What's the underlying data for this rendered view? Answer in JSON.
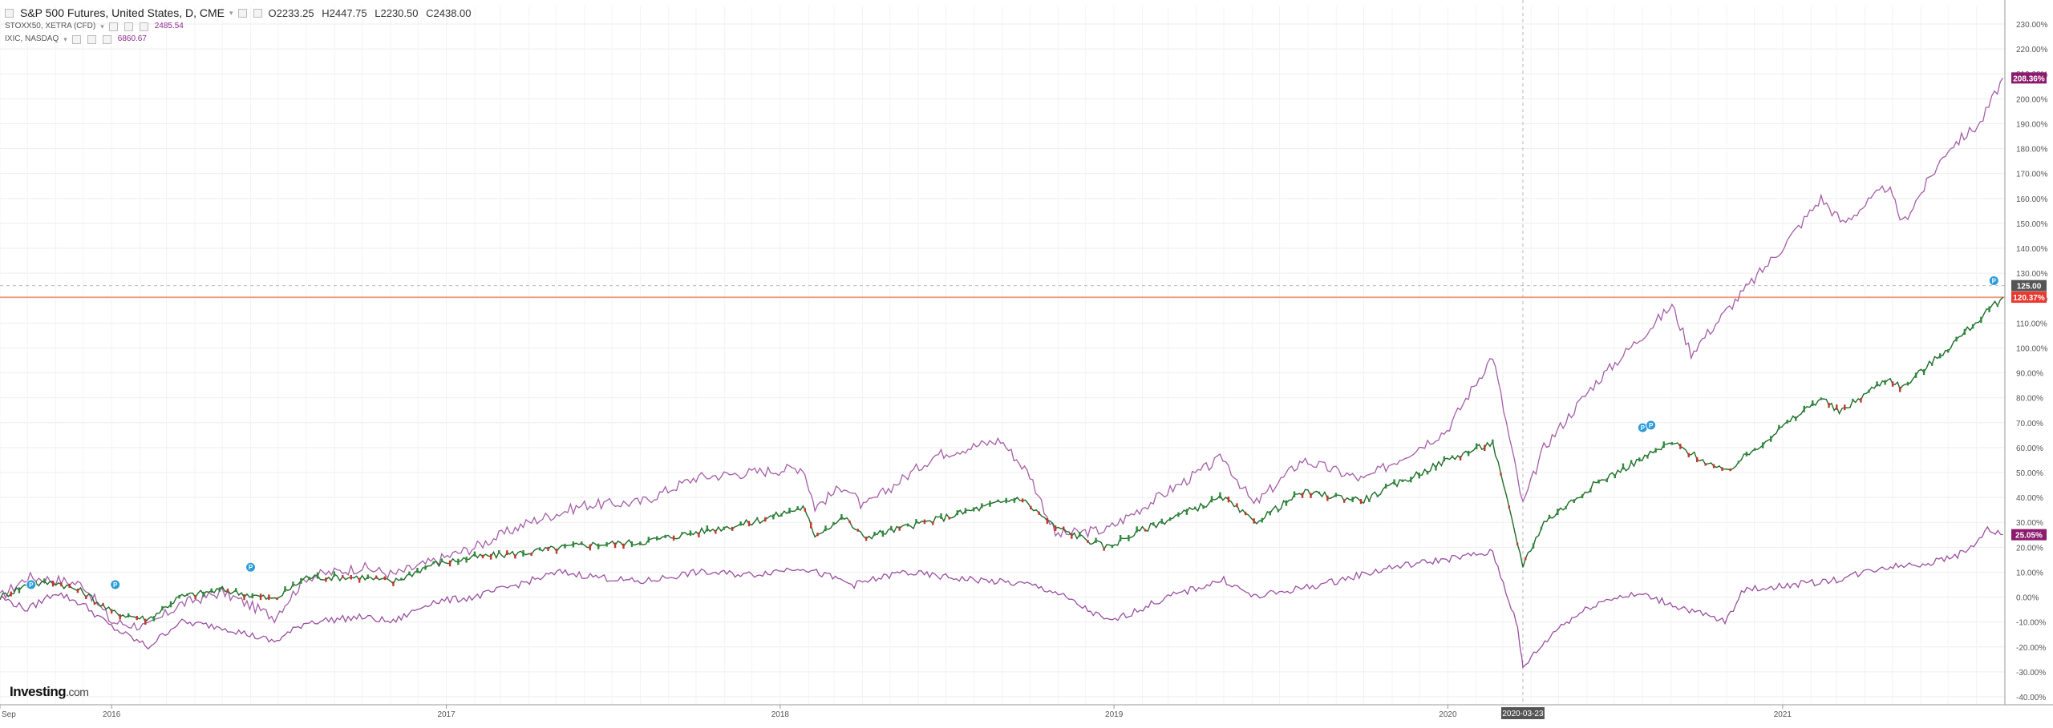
{
  "legend": {
    "main": {
      "title": "S&P 500 Futures, United States, D, CME",
      "open": "O2233.25",
      "high": "H2447.75",
      "low": "L2230.50",
      "close": "C2438.00"
    },
    "series": [
      {
        "name": "STOXX50, XETRA (CFD)",
        "value": "2485.54"
      },
      {
        "name": "IXIC, NASDAQ",
        "value": "6860.67"
      }
    ]
  },
  "logo": {
    "text": "Investing",
    "suffix": ".com"
  },
  "axis": {
    "y_ticks": [
      "230.00%",
      "220.00%",
      "210.00%",
      "200.00%",
      "190.00%",
      "180.00%",
      "170.00%",
      "160.00%",
      "150.00%",
      "140.00%",
      "130.00%",
      "120.00%",
      "110.00%",
      "100.00%",
      "90.00%",
      "80.00%",
      "70.00%",
      "60.00%",
      "50.00%",
      "40.00%",
      "30.00%",
      "20.00%",
      "10.00%",
      "0.00%",
      "-10.00%",
      "-20.00%",
      "-30.00%",
      "-40.00%"
    ],
    "x_labels": [
      "Sep",
      "2016",
      "2017",
      "2018",
      "2019",
      "2020",
      "2021"
    ],
    "crosshair_date": "2020-03-23",
    "badges": [
      {
        "label": "208.36%",
        "value": 208.36,
        "color": "#8e1a6e"
      },
      {
        "label": "125.00",
        "value": 125.0,
        "color": "#555555"
      },
      {
        "label": "120.37%",
        "value": 120.37,
        "color": "#e8382f"
      },
      {
        "label": "25.05%",
        "value": 25.05,
        "color": "#8e1a6e"
      }
    ]
  },
  "colors": {
    "ixic": "#a55ea8",
    "stoxx": "#9b4fa0",
    "up": "#2e8b3a",
    "down": "#c0392b",
    "hline": "#f28b6d",
    "grid": "#eeeeee"
  },
  "chart_data": {
    "type": "line",
    "ylim": [
      -40,
      230
    ],
    "y_unit": "%",
    "xlim": [
      "2015-09-01",
      "2021-09-01"
    ],
    "hline": 120.37,
    "crosshair_y": 125.0,
    "series": [
      {
        "name": "IXIC, NASDAQ",
        "color": "#a55ea8",
        "x": [
          "2015-09-01",
          "2015-10-01",
          "2015-11-01",
          "2015-12-01",
          "2016-01-01",
          "2016-02-10",
          "2016-03-15",
          "2016-05-01",
          "2016-06-27",
          "2016-08-01",
          "2016-10-01",
          "2016-11-04",
          "2016-12-15",
          "2017-02-01",
          "2017-04-01",
          "2017-06-01",
          "2017-08-01",
          "2017-10-01",
          "2017-12-01",
          "2018-01-26",
          "2018-02-08",
          "2018-03-12",
          "2018-04-02",
          "2018-06-20",
          "2018-08-30",
          "2018-10-01",
          "2018-10-29",
          "2018-12-24",
          "2019-02-01",
          "2019-04-30",
          "2019-06-03",
          "2019-07-26",
          "2019-10-01",
          "2019-12-31",
          "2020-02-19",
          "2020-03-23",
          "2020-04-15",
          "2020-06-08",
          "2020-09-02",
          "2020-09-23",
          "2020-11-01",
          "2020-12-31",
          "2021-02-12",
          "2021-03-08",
          "2021-04-26",
          "2021-05-12",
          "2021-07-01",
          "2021-08-05",
          "2021-08-30"
        ],
        "y": [
          0,
          8,
          7,
          5,
          -10,
          -12,
          -3,
          2,
          -8,
          8,
          12,
          9,
          14,
          20,
          30,
          37,
          38,
          48,
          50,
          52,
          36,
          45,
          36,
          57,
          63,
          49,
          25,
          27,
          36,
          56,
          37,
          55,
          47,
          67,
          97,
          37,
          60,
          85,
          117,
          98,
          115,
          140,
          160,
          150,
          165,
          150,
          180,
          190,
          208.36
        ]
      },
      {
        "name": "S&P 500 Futures",
        "color": "#2e8b3a",
        "x": [
          "2015-09-01",
          "2015-10-01",
          "2015-11-01",
          "2015-12-01",
          "2016-01-01",
          "2016-02-10",
          "2016-03-15",
          "2016-05-01",
          "2016-06-27",
          "2016-08-01",
          "2016-10-01",
          "2016-11-04",
          "2016-12-15",
          "2017-02-01",
          "2017-04-01",
          "2017-06-01",
          "2017-08-01",
          "2017-10-01",
          "2017-12-01",
          "2018-01-26",
          "2018-02-08",
          "2018-03-12",
          "2018-04-02",
          "2018-06-20",
          "2018-09-20",
          "2018-10-29",
          "2018-12-24",
          "2019-02-01",
          "2019-04-30",
          "2019-06-03",
          "2019-07-26",
          "2019-10-01",
          "2019-12-31",
          "2020-02-19",
          "2020-03-23",
          "2020-04-15",
          "2020-06-08",
          "2020-09-02",
          "2020-10-30",
          "2020-12-31",
          "2021-02-12",
          "2021-03-04",
          "2021-04-26",
          "2021-05-12",
          "2021-07-01",
          "2021-08-30"
        ],
        "y": [
          0,
          5,
          6,
          2,
          -6,
          -9,
          0,
          3,
          -1,
          8,
          8,
          6,
          13,
          16,
          18,
          21,
          22,
          26,
          30,
          36,
          25,
          32,
          24,
          31,
          40,
          28,
          20,
          27,
          40,
          30,
          42,
          39,
          55,
          62,
          13,
          30,
          45,
          62,
          50,
          68,
          80,
          74,
          88,
          84,
          100,
          120.37
        ]
      },
      {
        "name": "STOXX50, XETRA (CFD)",
        "color": "#9b4fa0",
        "x": [
          "2015-09-01",
          "2015-10-01",
          "2015-11-01",
          "2015-12-01",
          "2016-01-01",
          "2016-02-10",
          "2016-03-15",
          "2016-05-01",
          "2016-06-27",
          "2016-08-01",
          "2016-10-01",
          "2016-11-04",
          "2016-12-15",
          "2017-02-01",
          "2017-05-05",
          "2017-08-01",
          "2017-10-01",
          "2017-12-01",
          "2018-01-23",
          "2018-03-23",
          "2018-05-15",
          "2018-07-01",
          "2018-10-01",
          "2018-10-29",
          "2018-12-27",
          "2019-03-01",
          "2019-05-01",
          "2019-06-03",
          "2019-08-15",
          "2019-11-01",
          "2020-02-19",
          "2020-03-16",
          "2020-03-23",
          "2020-05-01",
          "2020-06-08",
          "2020-07-01",
          "2020-08-01",
          "2020-10-30",
          "2020-11-20",
          "2021-01-15",
          "2021-03-01",
          "2021-04-20",
          "2021-06-15",
          "2021-07-20",
          "2021-08-13",
          "2021-08-30"
        ],
        "y": [
          0,
          -5,
          2,
          -3,
          -12,
          -20,
          -10,
          -12,
          -18,
          -10,
          -8,
          -10,
          -2,
          0,
          10,
          6,
          10,
          9,
          12,
          5,
          10,
          8,
          5,
          2,
          -10,
          0,
          7,
          0,
          5,
          12,
          18,
          -10,
          -28,
          -12,
          -3,
          0,
          1,
          -10,
          3,
          5,
          7,
          12,
          14,
          18,
          27,
          25.05
        ]
      }
    ],
    "markers": [
      {
        "x": "2015-10-05",
        "y": 5
      },
      {
        "x": "2016-01-05",
        "y": 5
      },
      {
        "x": "2016-06-01",
        "y": 12
      },
      {
        "x": "2020-08-01",
        "y": 68
      },
      {
        "x": "2020-08-10",
        "y": 69
      },
      {
        "x": "2021-08-20",
        "y": 127
      }
    ]
  }
}
